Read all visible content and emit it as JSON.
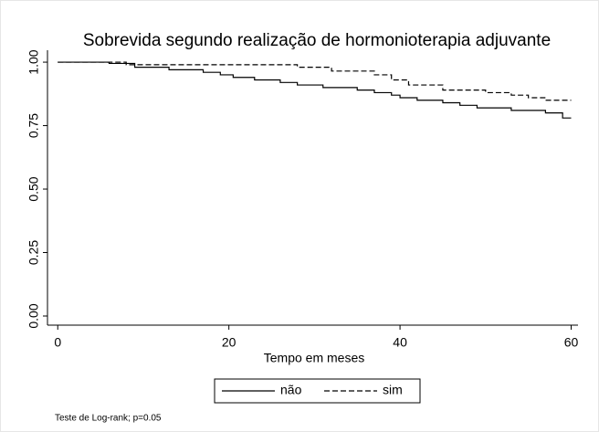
{
  "chart_data": {
    "type": "step",
    "title": "Sobrevida segundo realização de hormonioterapia adjuvante",
    "xlabel": "Tempo em meses",
    "note": "Teste de Log-rank; p=0.05",
    "xlim": [
      -1.2,
      60.8
    ],
    "xticks": [
      0,
      20,
      40,
      60
    ],
    "ylim": [
      -0.036,
      1.047
    ],
    "yticks": [
      {
        "value": 0,
        "label": "0.00"
      },
      {
        "value": 0.25,
        "label": "0.25"
      },
      {
        "value": 0.5,
        "label": "0.50"
      },
      {
        "value": 0.75,
        "label": "0.75"
      },
      {
        "value": 1,
        "label": "1.00"
      }
    ],
    "legend": "bottom",
    "series": [
      {
        "name": "não",
        "color": "#000000",
        "dash": "solid",
        "x": [
          0,
          6,
          9,
          13,
          17,
          19,
          20.5,
          23,
          26,
          28,
          31,
          35,
          37,
          39,
          40,
          42,
          45,
          47,
          49,
          53,
          57,
          59,
          60
        ],
        "values": [
          1,
          0.995,
          0.98,
          0.97,
          0.96,
          0.95,
          0.94,
          0.93,
          0.92,
          0.91,
          0.9,
          0.89,
          0.88,
          0.87,
          0.86,
          0.85,
          0.84,
          0.83,
          0.82,
          0.81,
          0.8,
          0.78,
          0.78
        ]
      },
      {
        "name": "sim",
        "color": "#000000",
        "dash": "dashed",
        "x": [
          0,
          8,
          28,
          32,
          37,
          39,
          41,
          45,
          50,
          53,
          55,
          57,
          60
        ],
        "values": [
          1,
          0.99,
          0.98,
          0.965,
          0.95,
          0.93,
          0.91,
          0.89,
          0.88,
          0.87,
          0.86,
          0.85,
          0.85
        ]
      }
    ]
  }
}
